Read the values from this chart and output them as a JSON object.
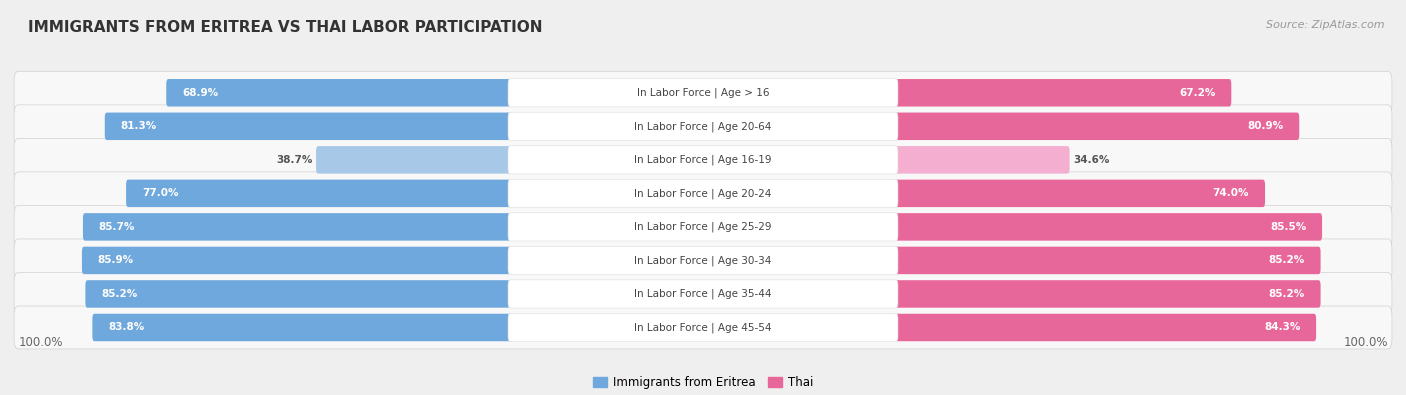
{
  "title": "IMMIGRANTS FROM ERITREA VS THAI LABOR PARTICIPATION",
  "source": "Source: ZipAtlas.com",
  "categories": [
    "In Labor Force | Age > 16",
    "In Labor Force | Age 20-64",
    "In Labor Force | Age 16-19",
    "In Labor Force | Age 20-24",
    "In Labor Force | Age 25-29",
    "In Labor Force | Age 30-34",
    "In Labor Force | Age 35-44",
    "In Labor Force | Age 45-54"
  ],
  "eritrea_values": [
    68.9,
    81.3,
    38.7,
    77.0,
    85.7,
    85.9,
    85.2,
    83.8
  ],
  "thai_values": [
    67.2,
    80.9,
    34.6,
    74.0,
    85.5,
    85.2,
    85.2,
    84.3
  ],
  "eritrea_color": "#6FA8DC",
  "eritrea_color_light": "#A8C8E8",
  "thai_color": "#E8679A",
  "thai_color_light": "#F4AECF",
  "bg_color": "#EFEFEF",
  "row_bg_color": "#F8F8F8",
  "label_bg_color": "#FFFFFF",
  "title_fontsize": 11,
  "label_fontsize": 7.5,
  "value_fontsize": 7.5,
  "legend_fontsize": 8.5,
  "source_fontsize": 8
}
